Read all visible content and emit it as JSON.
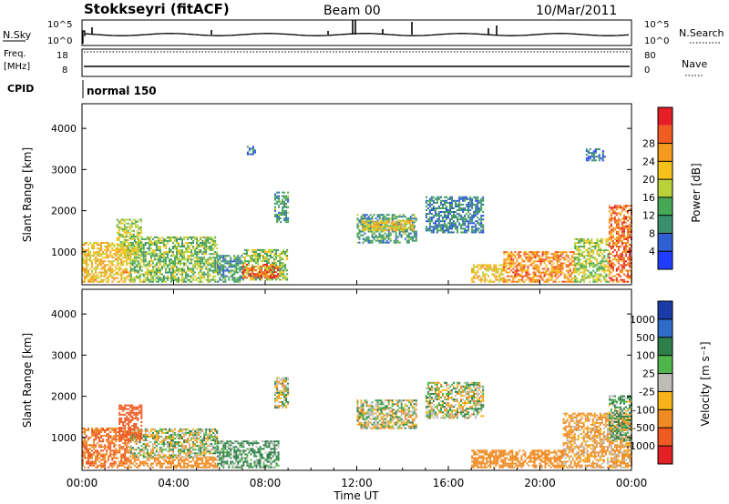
{
  "header": {
    "station": "Stokkseyri (fitACF)",
    "beam": "Beam 00",
    "date": "10/Mar/2011"
  },
  "top_panels": {
    "nsky": {
      "label": "N.Sky",
      "scale_top": "10^5",
      "scale_bottom": "10^0",
      "right_label": "N.Search",
      "right_top": "10^5",
      "right_bottom": "10^0"
    },
    "freq": {
      "label_line1": "Freq.",
      "label_line2": "[MHz]",
      "ticks": [
        "18",
        "8"
      ],
      "right_label": "Nave",
      "right_ticks": [
        "80",
        "0"
      ]
    },
    "cpid": {
      "label": "CPID",
      "value": "normal 150"
    }
  },
  "colors": {
    "power": [
      "#1f3cff",
      "#2f5fd0",
      "#3c8f6e",
      "#46a855",
      "#b9d23a",
      "#f6c11b",
      "#f59a1e",
      "#f15c20",
      "#e61e26"
    ],
    "velocity": [
      "#1b3ba8",
      "#2f6cc9",
      "#2f7f4a",
      "#4fb64b",
      "#bdbdb6",
      "#f7b317",
      "#f08a22",
      "#ee5a22",
      "#e32024"
    ]
  },
  "chart_data": [
    {
      "type": "heatmap",
      "panel": "power",
      "ylabel": "Slant Range [km]",
      "yticks": [
        "1000",
        "2000",
        "3000",
        "4000"
      ],
      "ylim": [
        200,
        4600
      ],
      "xlim_hours": [
        0,
        24
      ],
      "colorbar_label": "Power [dB]",
      "colorbar_ticks": [
        "4",
        "8",
        "12",
        "16",
        "20",
        "24",
        "28"
      ],
      "colorbar_range": [
        0,
        32
      ],
      "regions": [
        {
          "t0": 0.0,
          "t1": 2.1,
          "r0": 250,
          "r1": 1200,
          "level": 20
        },
        {
          "t0": 2.1,
          "t1": 5.9,
          "r0": 250,
          "r1": 1350,
          "level": 14
        },
        {
          "t0": 5.9,
          "t1": 7.0,
          "r0": 250,
          "r1": 900,
          "level": 10
        },
        {
          "t0": 7.0,
          "t1": 9.0,
          "r0": 300,
          "r1": 1050,
          "level": 14
        },
        {
          "t0": 7.0,
          "t1": 8.6,
          "r0": 350,
          "r1": 700,
          "level": 26
        },
        {
          "t0": 1.5,
          "t1": 2.6,
          "r0": 900,
          "r1": 1800,
          "level": 16
        },
        {
          "t0": 8.4,
          "t1": 9.0,
          "r0": 1700,
          "r1": 2450,
          "level": 10
        },
        {
          "t0": 12.0,
          "t1": 14.6,
          "r0": 1200,
          "r1": 1900,
          "level": 10
        },
        {
          "t0": 12.2,
          "t1": 14.5,
          "r0": 1500,
          "r1": 1750,
          "level": 20
        },
        {
          "t0": 15.0,
          "t1": 17.5,
          "r0": 1450,
          "r1": 2350,
          "level": 8
        },
        {
          "t0": 17.0,
          "t1": 18.4,
          "r0": 250,
          "r1": 700,
          "level": 20
        },
        {
          "t0": 18.4,
          "t1": 21.5,
          "r0": 250,
          "r1": 1000,
          "level": 24
        },
        {
          "t0": 21.5,
          "t1": 23.0,
          "r0": 250,
          "r1": 1300,
          "level": 16
        },
        {
          "t0": 23.0,
          "t1": 24.0,
          "r0": 250,
          "r1": 2100,
          "level": 26
        },
        {
          "t0": 22.0,
          "t1": 22.8,
          "r0": 3200,
          "r1": 3500,
          "level": 6
        },
        {
          "t0": 7.2,
          "t1": 7.6,
          "r0": 3350,
          "r1": 3550,
          "level": 6
        }
      ]
    },
    {
      "type": "heatmap",
      "panel": "velocity",
      "ylabel": "Slant Range [km]",
      "yticks": [
        "1000",
        "2000",
        "3000",
        "4000"
      ],
      "ylim": [
        200,
        4600
      ],
      "xlim_hours": [
        0,
        24
      ],
      "colorbar_label": "Velocity [m s⁻¹]",
      "colorbar_ticks": [
        "1000",
        "500",
        "100",
        "25",
        "-25",
        "-100",
        "-500",
        "-1000"
      ],
      "regions": [
        {
          "t0": 0.0,
          "t1": 2.1,
          "r0": 250,
          "r1": 1200,
          "level": -300
        },
        {
          "t0": 2.1,
          "t1": 5.9,
          "r0": 500,
          "r1": 1200,
          "level": 0
        },
        {
          "t0": 2.1,
          "t1": 5.9,
          "r0": 250,
          "r1": 500,
          "level": -200
        },
        {
          "t0": 5.9,
          "t1": 8.6,
          "r0": 250,
          "r1": 900,
          "level": 80
        },
        {
          "t0": 8.4,
          "t1": 9.0,
          "r0": 1700,
          "r1": 2450,
          "level": 0
        },
        {
          "t0": 12.0,
          "t1": 14.6,
          "r0": 1200,
          "r1": 1900,
          "level": 0
        },
        {
          "t0": 15.0,
          "t1": 17.5,
          "r0": 1450,
          "r1": 2350,
          "level": 0
        },
        {
          "t0": 17.0,
          "t1": 21.0,
          "r0": 250,
          "r1": 700,
          "level": -200
        },
        {
          "t0": 21.0,
          "t1": 24.0,
          "r0": 250,
          "r1": 1600,
          "level": -80
        },
        {
          "t0": 23.0,
          "t1": 24.0,
          "r0": 900,
          "r1": 2000,
          "level": 60
        },
        {
          "t0": 1.6,
          "t1": 2.6,
          "r0": 900,
          "r1": 1800,
          "level": -400
        }
      ]
    }
  ],
  "xaxis": {
    "ticks": [
      "00:00",
      "04:00",
      "08:00",
      "12:00",
      "16:00",
      "20:00",
      "00:00"
    ],
    "label": "Time UT"
  }
}
